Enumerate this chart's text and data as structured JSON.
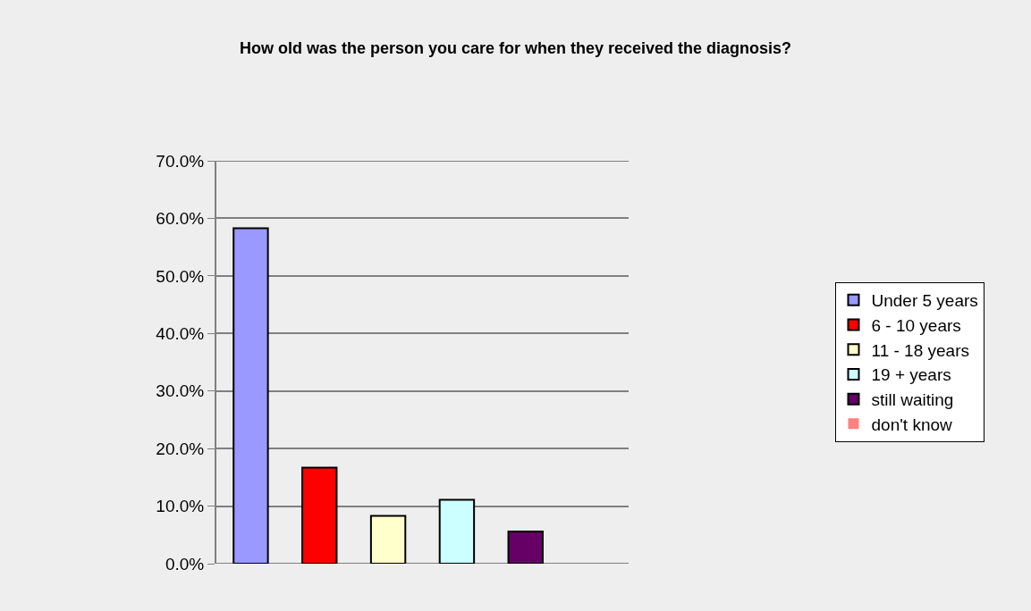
{
  "chart_data": {
    "type": "bar",
    "title": "How old was the person you care for when they received the diagnosis?",
    "categories": [
      null
    ],
    "series": [
      {
        "name": "Under 5 years",
        "color": "#9999ff",
        "values": [
          58.3
        ]
      },
      {
        "name": "6 - 10 years",
        "color": "#ff0000",
        "values": [
          16.7
        ]
      },
      {
        "name": "11 - 18 years",
        "color": "#ffffcc",
        "values": [
          8.3
        ]
      },
      {
        "name": "19 + years",
        "color": "#ccffff",
        "values": [
          11.1
        ]
      },
      {
        "name": "still waiting",
        "color": "#660066",
        "values": [
          5.6
        ]
      },
      {
        "name": "don't know",
        "color": "#ff8080",
        "values": [
          0
        ]
      }
    ],
    "ylim": [
      0,
      70
    ],
    "yticks": [
      {
        "value": 0,
        "label": "0.0%"
      },
      {
        "value": 10,
        "label": "10.0%"
      },
      {
        "value": 20,
        "label": "20.0%"
      },
      {
        "value": 30,
        "label": "30.0%"
      },
      {
        "value": 40,
        "label": "40.0%"
      },
      {
        "value": 50,
        "label": "50.0%"
      },
      {
        "value": 60,
        "label": "60.0%"
      },
      {
        "value": 70,
        "label": "70.0%"
      }
    ],
    "grid": "y",
    "legend": "right"
  }
}
